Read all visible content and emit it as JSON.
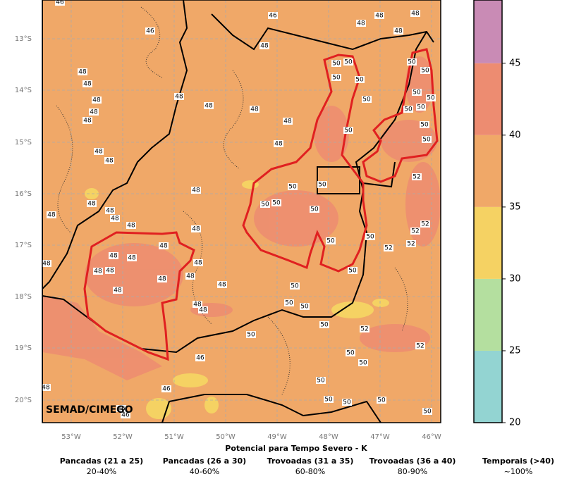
{
  "map": {
    "watermark": "SEMAD/CIMEGO",
    "title": "Potencial para Tempo Severo - K",
    "lat_labels": [
      "13°S",
      "14°S",
      "15°S",
      "16°S",
      "17°S",
      "18°S",
      "19°S",
      "20°S"
    ],
    "lon_labels": [
      "53°W",
      "52°W",
      "51°W",
      "50°W",
      "49°W",
      "48°W",
      "47°W",
      "46°W"
    ],
    "contour_labels": [
      46,
      46,
      46,
      48,
      48,
      48,
      48,
      48,
      48,
      48,
      48,
      48,
      48,
      48,
      48,
      48,
      48,
      48,
      48,
      48,
      48,
      48,
      48,
      48,
      48,
      48,
      48,
      48,
      48,
      48,
      48,
      48,
      48,
      48,
      48,
      48,
      48,
      48,
      48,
      48,
      50,
      50,
      50,
      50,
      50,
      50,
      50,
      50,
      50,
      50,
      50,
      50,
      50,
      50,
      50,
      50,
      50,
      50,
      50,
      50,
      50,
      50,
      50,
      50,
      50,
      50,
      50,
      50,
      50,
      50,
      50,
      50,
      50,
      50,
      52,
      52,
      52,
      52,
      52,
      52,
      52,
      46,
      46,
      48,
      46,
      46
    ],
    "colorbar": {
      "levels": [
        20,
        25,
        30,
        35,
        40,
        45,
        50
      ],
      "colors": [
        "#93d4d2",
        "#b4df9f",
        "#f5d263",
        "#f0a868",
        "#ed8c71",
        "#c98bb5"
      ],
      "lim": [
        20,
        49.4
      ],
      "ticks": [
        20,
        25,
        30,
        35,
        40,
        45
      ]
    },
    "legend": [
      {
        "name": "Pancadas (21 a 25)",
        "prob": "20-40%"
      },
      {
        "name": "Pancadas (26 a 30)",
        "prob": "40-60%"
      },
      {
        "name": "Trovoadas (31 a 35)",
        "prob": "60-80%"
      },
      {
        "name": "Trovoadas (36 a 40)",
        "prob": "80-90%"
      },
      {
        "name": "Temporais (>40)",
        "prob": "~100%"
      }
    ]
  }
}
